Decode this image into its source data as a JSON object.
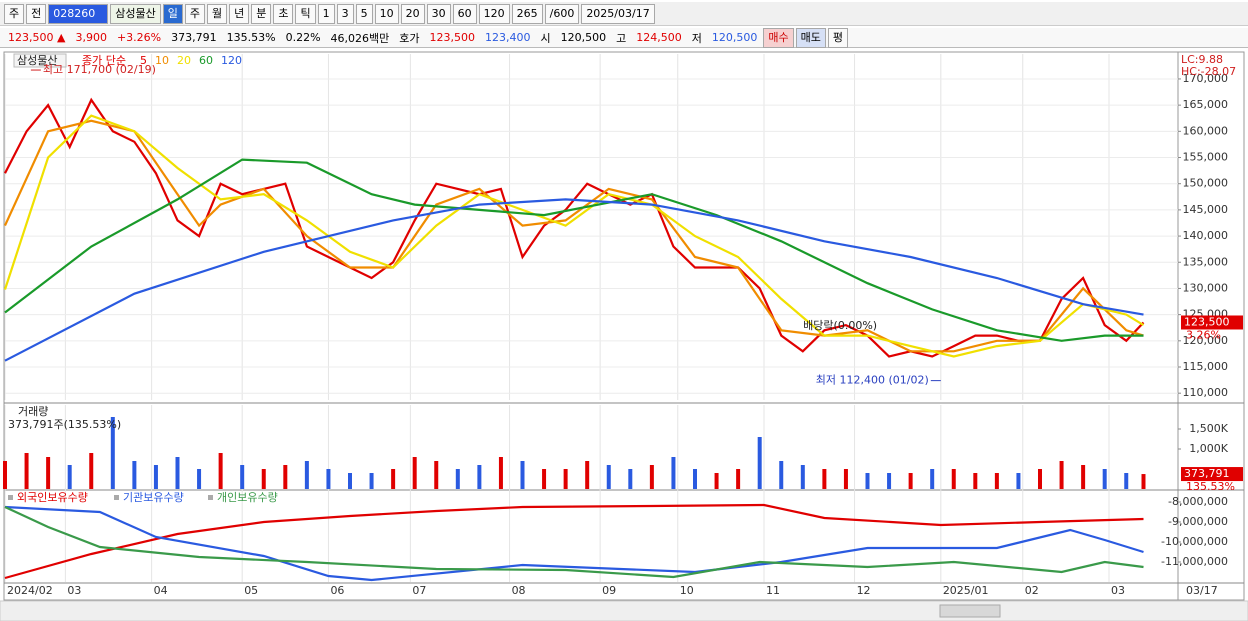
{
  "toolbar": {
    "items": [
      "주",
      "전",
      "028260",
      "삼성물산",
      "일",
      "주",
      "월",
      "년",
      "분",
      "초",
      "틱",
      "1",
      "3",
      "5",
      "10",
      "20",
      "30",
      "60",
      "120",
      "265",
      "/600",
      "2025/03/17"
    ]
  },
  "info_bar": {
    "items": [
      "123,500 ▲",
      "3,900",
      "+3.26%",
      "373,791",
      "135.53%",
      "0.22%",
      "46,026백만",
      "호가",
      "123,500",
      "123,400",
      "시",
      "120,500",
      "고",
      "124,500",
      "저",
      "120,500",
      "매수",
      "매도",
      "평"
    ]
  },
  "chart_data": [
    {
      "type": "line",
      "title": "삼성물산",
      "legend_label": "종가 단순",
      "corner_labels": [
        "LC:9.88",
        "HC:-28.07"
      ],
      "xlim": [
        0,
        272
      ],
      "ylim": [
        108700,
        174000
      ],
      "yticks": [
        {
          "value": 110000,
          "label": "110,000"
        },
        {
          "value": 115000,
          "label": "115,000"
        },
        {
          "value": 120000,
          "label": "120,000"
        },
        {
          "value": 125000,
          "label": "125,000"
        },
        {
          "value": 130000,
          "label": "130,000"
        },
        {
          "value": 135000,
          "label": "135,000"
        },
        {
          "value": 140000,
          "label": "140,000"
        },
        {
          "value": 145000,
          "label": "145,000"
        },
        {
          "value": 150000,
          "label": "150,000"
        },
        {
          "value": 155000,
          "label": "155,000"
        },
        {
          "value": 160000,
          "label": "160,000"
        },
        {
          "value": 165000,
          "label": "165,000"
        },
        {
          "value": 170000,
          "label": "170,000"
        }
      ],
      "grid": true,
      "series": [
        {
          "name": "5",
          "color": "#e00000",
          "x": [
            0,
            5,
            10,
            15,
            20,
            25,
            30,
            35,
            40,
            45,
            50,
            55,
            60,
            65,
            70,
            75,
            80,
            85,
            90,
            95,
            100,
            105,
            110,
            115,
            120,
            125,
            130,
            135,
            140,
            145,
            150,
            155,
            160,
            165,
            170,
            175,
            180,
            185,
            190,
            195,
            200,
            205,
            210,
            215,
            220,
            225,
            230,
            235,
            240,
            245,
            250,
            255,
            260,
            264
          ],
          "values": [
            152000,
            160000,
            165000,
            157000,
            166000,
            160000,
            158000,
            152000,
            143000,
            140000,
            150000,
            148000,
            149000,
            150000,
            138000,
            136000,
            134000,
            132000,
            135000,
            143000,
            150000,
            149000,
            148000,
            149000,
            136000,
            142000,
            145000,
            150000,
            148000,
            146000,
            148000,
            138000,
            134000,
            134000,
            134000,
            130000,
            121000,
            118000,
            122000,
            123000,
            121000,
            117000,
            118000,
            117000,
            119000,
            121000,
            121000,
            120000,
            120000,
            128000,
            132000,
            123000,
            120000,
            123500
          ]
        },
        {
          "name": "10",
          "color": "#f08c00",
          "x": [
            0,
            10,
            20,
            30,
            40,
            45,
            50,
            60,
            70,
            80,
            90,
            100,
            110,
            120,
            130,
            140,
            150,
            160,
            170,
            180,
            190,
            200,
            210,
            220,
            230,
            240,
            250,
            260,
            264
          ],
          "values": [
            142000,
            160000,
            162000,
            160000,
            148000,
            142000,
            146000,
            149000,
            140000,
            134000,
            134000,
            146000,
            149000,
            142000,
            143000,
            149000,
            147000,
            136000,
            134000,
            122000,
            121000,
            122000,
            118000,
            118000,
            120000,
            120000,
            130000,
            122000,
            121000
          ]
        },
        {
          "name": "20",
          "color": "#f0e000",
          "x": [
            0,
            10,
            20,
            30,
            40,
            50,
            60,
            70,
            80,
            90,
            100,
            110,
            120,
            130,
            140,
            150,
            160,
            170,
            180,
            190,
            200,
            210,
            220,
            230,
            240,
            250,
            260,
            264
          ],
          "values": [
            129800,
            155000,
            163000,
            160000,
            153000,
            147000,
            148000,
            143000,
            137000,
            134000,
            142000,
            148000,
            145000,
            142000,
            148000,
            146000,
            140000,
            136000,
            128000,
            121000,
            121000,
            119000,
            117000,
            119000,
            120000,
            127000,
            125000,
            123000
          ]
        },
        {
          "name": "60",
          "color": "#1a9a2a",
          "x": [
            0,
            20,
            40,
            55,
            70,
            85,
            95,
            110,
            125,
            150,
            165,
            180,
            200,
            215,
            230,
            245,
            255,
            264
          ],
          "values": [
            125400,
            138000,
            147000,
            154600,
            154000,
            148000,
            146000,
            145000,
            144000,
            148000,
            144000,
            139000,
            131000,
            126000,
            122000,
            120000,
            121000,
            121000
          ]
        },
        {
          "name": "120",
          "color": "#2a5ae0",
          "x": [
            0,
            30,
            60,
            90,
            110,
            130,
            150,
            170,
            190,
            210,
            230,
            250,
            264
          ],
          "values": [
            116200,
            129000,
            137000,
            143000,
            146000,
            147000,
            146000,
            143000,
            139000,
            136000,
            132000,
            127000,
            125000
          ]
        }
      ],
      "annotations": [
        {
          "text": "최고 171,700 (02/19)",
          "x": 6,
          "y": 171700
        },
        {
          "text": "최저 112,400 (01/02)",
          "x": 217,
          "y": 112400
        },
        {
          "text": "배당락(0.00%)",
          "x": 205,
          "y": 122800
        }
      ],
      "current": {
        "value": 123500,
        "label": "123,500"
      },
      "change_label": "3.26%"
    },
    {
      "type": "bar",
      "title": "거래량",
      "subtitle": "373,791주(135.53%)",
      "xlim": [
        0,
        272
      ],
      "ylim": [
        0,
        2000000
      ],
      "yticks": [
        {
          "value": 1000000,
          "label": "1,000K"
        },
        {
          "value": 1500000,
          "label": "1,500K"
        }
      ],
      "up_color": "#e00000",
      "down_color": "#2a5ae0",
      "x": [
        0,
        5,
        10,
        15,
        20,
        25,
        30,
        35,
        40,
        45,
        50,
        55,
        60,
        65,
        70,
        75,
        80,
        85,
        90,
        95,
        100,
        105,
        110,
        115,
        120,
        125,
        130,
        135,
        140,
        145,
        150,
        155,
        160,
        165,
        170,
        175,
        180,
        185,
        190,
        195,
        200,
        205,
        210,
        215,
        220,
        225,
        230,
        235,
        240,
        245,
        250,
        255,
        260,
        264
      ],
      "values": [
        700000,
        900000,
        800000,
        600000,
        900000,
        1800000,
        700000,
        600000,
        800000,
        500000,
        900000,
        600000,
        500000,
        600000,
        700000,
        500000,
        400000,
        400000,
        500000,
        800000,
        700000,
        500000,
        600000,
        800000,
        700000,
        500000,
        500000,
        700000,
        600000,
        500000,
        600000,
        800000,
        500000,
        400000,
        500000,
        1300000,
        700000,
        600000,
        500000,
        500000,
        400000,
        400000,
        400000,
        500000,
        500000,
        400000,
        400000,
        400000,
        500000,
        700000,
        600000,
        500000,
        400000,
        373791
      ],
      "current": {
        "value": 373791,
        "label": "373,791"
      },
      "change_label": "135.53%"
    },
    {
      "type": "line",
      "xlim": [
        0,
        272
      ],
      "ylim": [
        -12000000,
        -7500000
      ],
      "yticks": [
        {
          "value": -8000000,
          "label": "-8,000,000"
        },
        {
          "value": -9000000,
          "label": "-9,000,000"
        },
        {
          "value": -10000000,
          "label": "-10,000,000"
        },
        {
          "value": -11000000,
          "label": "-11,000,000"
        }
      ],
      "xticks": [
        {
          "value": 0,
          "label": "2024/02"
        },
        {
          "value": 14,
          "label": "03"
        },
        {
          "value": 34,
          "label": "04"
        },
        {
          "value": 55,
          "label": "05"
        },
        {
          "value": 75,
          "label": "06"
        },
        {
          "value": 94,
          "label": "07"
        },
        {
          "value": 117,
          "label": "08"
        },
        {
          "value": 138,
          "label": "09"
        },
        {
          "value": 156,
          "label": "10"
        },
        {
          "value": 176,
          "label": "11"
        },
        {
          "value": 197,
          "label": "12"
        },
        {
          "value": 217,
          "label": "2025/01"
        },
        {
          "value": 236,
          "label": "02"
        },
        {
          "value": 256,
          "label": "03"
        }
      ],
      "end_label": "03/17",
      "series": [
        {
          "name": "외국인보유수량",
          "color": "#e00000",
          "x": [
            0,
            20,
            40,
            60,
            80,
            100,
            120,
            150,
            176,
            190,
            217,
            240,
            264
          ],
          "values": [
            -11800000,
            -10600000,
            -9600000,
            -9000000,
            -8700000,
            -8450000,
            -8250000,
            -8200000,
            -8150000,
            -8800000,
            -9150000,
            -9000000,
            -8850000
          ]
        },
        {
          "name": "기관보유수량",
          "color": "#2a5ae0",
          "x": [
            0,
            22,
            35,
            60,
            75,
            85,
            120,
            160,
            180,
            200,
            230,
            247,
            255,
            264
          ],
          "values": [
            -8250000,
            -8500000,
            -9750000,
            -10700000,
            -11700000,
            -11900000,
            -11150000,
            -11500000,
            -11000000,
            -10300000,
            -10300000,
            -9400000,
            -9900000,
            -10500000
          ]
        },
        {
          "name": "개인보유수량",
          "color": "#3a9a4a",
          "x": [
            0,
            10,
            22,
            45,
            70,
            100,
            130,
            155,
            175,
            200,
            220,
            245,
            255,
            264
          ],
          "values": [
            -8250000,
            -9250000,
            -10250000,
            -10750000,
            -11000000,
            -11350000,
            -11400000,
            -11750000,
            -11000000,
            -11250000,
            -11000000,
            -11500000,
            -11000000,
            -11250000
          ]
        }
      ]
    }
  ]
}
